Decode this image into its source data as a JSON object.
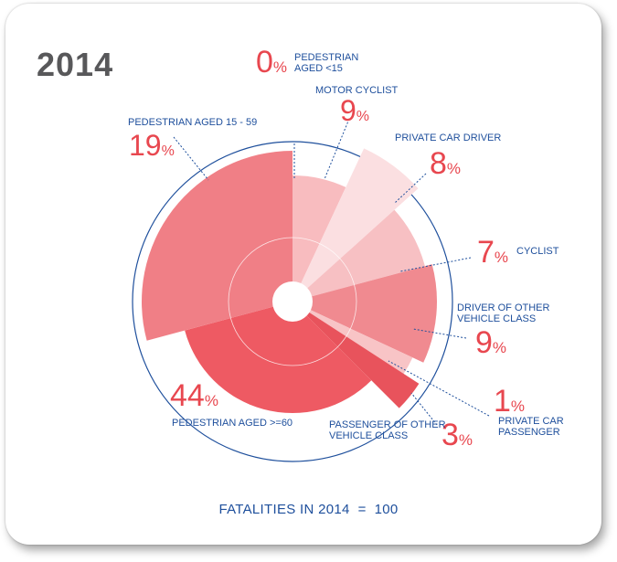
{
  "year_title": "2014",
  "footer": {
    "label": "FATALITIES IN 2014",
    "value": "100"
  },
  "colors": {
    "title": "#58585a",
    "label_blue": "#1e4f9c",
    "pct_red": "#e8474f"
  },
  "chart_data": {
    "type": "pie",
    "variant": "polar-area",
    "title": "2014",
    "total": 100,
    "segments": [
      {
        "name": "pedestrian-aged-lt15",
        "label_lines": [
          "PEDESTRIAN",
          "AGED <15"
        ],
        "value": 0,
        "pct_text": "0",
        "unit": "%",
        "color": "#f8c4c6"
      },
      {
        "name": "motor-cyclist",
        "label_lines": [
          "MOTOR CYCLIST"
        ],
        "value": 9,
        "pct_text": "9",
        "unit": "%",
        "color": "#f8bcbf"
      },
      {
        "name": "private-car-driver",
        "label_lines": [
          "PRIVATE CAR DRIVER"
        ],
        "value": 8,
        "pct_text": "8",
        "unit": "%",
        "color": "#fbdfe1"
      },
      {
        "name": "cyclist",
        "label_lines": [
          "CYCLIST"
        ],
        "value": 7,
        "pct_text": "7",
        "unit": "%",
        "color": "#f7c0c3"
      },
      {
        "name": "driver-other-vehicle",
        "label_lines": [
          "DRIVER OF OTHER",
          "VEHICLE CLASS"
        ],
        "value": 9,
        "pct_text": "9",
        "unit": "%",
        "color": "#f08a90"
      },
      {
        "name": "private-car-passenger",
        "label_lines": [
          "PRIVATE CAR",
          "PASSENGER"
        ],
        "value": 1,
        "pct_text": "1",
        "unit": "%",
        "color": "#f8c4c6"
      },
      {
        "name": "passenger-other-vehicle",
        "label_lines": [
          "PASSENGER OF OTHER",
          "VEHICLE CLASS"
        ],
        "value": 3,
        "pct_text": "3",
        "unit": "%",
        "color": "#e8535c"
      },
      {
        "name": "pedestrian-aged-60plus",
        "label_lines": [
          "PEDESTRIAN AGED >=60"
        ],
        "value": 44,
        "pct_text": "44",
        "unit": "%",
        "color": "#ee5a63"
      },
      {
        "name": "pedestrian-aged-15-59",
        "label_lines": [
          "PEDESTRIAN AGED 15 - 59"
        ],
        "value": 19,
        "pct_text": "19",
        "unit": "%",
        "color": "#f07f86"
      }
    ]
  }
}
